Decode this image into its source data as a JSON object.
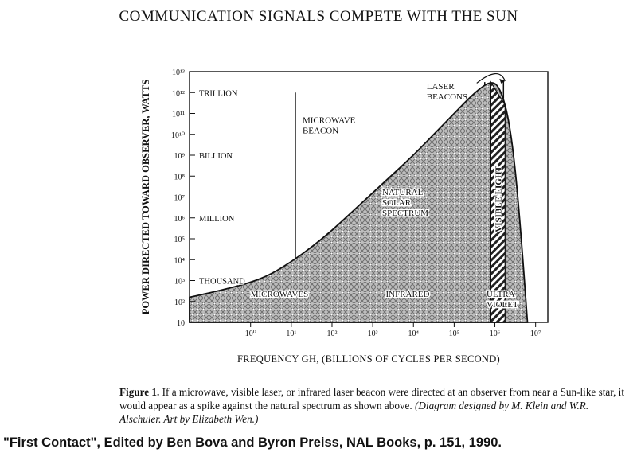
{
  "page": {
    "title": "COMMUNICATION SIGNALS COMPETE WITH THE SUN",
    "caption_label": "Figure 1.",
    "caption_text": " If a microwave, visible laser, or infrared laser beacon were directed at an observer from near a Sun-like star, it would appear as a spike against the natural spectrum as shown above. ",
    "caption_credit": "(Diagram designed by M. Klein and W.R. Alschuler. Art by Elizabeth Wen.)",
    "credit": "\"First Contact\", Edited by Ben Bova and Byron Preiss, NAL Books, p. 151, 1990."
  },
  "chart_data": {
    "type": "area",
    "title": "COMMUNICATION SIGNALS COMPETE WITH THE SUN",
    "xlabel": "FREQUENCY GH, (BILLIONS OF CYCLES PER SECOND)",
    "ylabel": "POWER DIRECTED TOWARD OBSERVER, WATTS",
    "x_scale": "log",
    "y_scale": "log",
    "xlim_exp": [
      -1.5,
      7.3
    ],
    "ylim_exp": [
      1,
      13
    ],
    "x_tick_exps": [
      0,
      1,
      2,
      3,
      4,
      5,
      6,
      7
    ],
    "x_tick_labels": [
      "10⁰",
      "10¹",
      "10²",
      "10³",
      "10⁴",
      "10⁵",
      "10⁶",
      "10⁷"
    ],
    "y_tick_exps": [
      13,
      12,
      11,
      10,
      9,
      8,
      7,
      6,
      5,
      4,
      3,
      2,
      1
    ],
    "y_tick_labels": [
      "10¹³",
      "10¹²",
      "10¹¹",
      "10¹⁰",
      "10⁹",
      "10⁸",
      "10⁷",
      "10⁶",
      "10⁵",
      "10⁴",
      "10³",
      "10²",
      "10"
    ],
    "y_word_labels": [
      {
        "exp": 12,
        "text": "TRILLION"
      },
      {
        "exp": 9,
        "text": "BILLION"
      },
      {
        "exp": 6,
        "text": "MILLION"
      },
      {
        "exp": 3,
        "text": "THOUSAND"
      }
    ],
    "series": [
      {
        "name": "NATURAL SOLAR SPECTRUM",
        "x_exp": [
          -1.5,
          -0.8,
          0,
          0.5,
          1.0,
          1.5,
          2.0,
          2.5,
          3.0,
          3.5,
          4.0,
          4.5,
          5.0,
          5.4,
          5.7,
          5.9,
          6.05,
          6.2,
          6.35,
          6.5,
          6.65,
          6.8
        ],
        "y_exp": [
          2.2,
          2.5,
          2.9,
          3.3,
          3.9,
          4.6,
          5.4,
          6.3,
          7.2,
          8.1,
          9.0,
          10.0,
          11.0,
          11.8,
          12.3,
          12.5,
          12.4,
          11.8,
          10.6,
          8.4,
          5.0,
          1.0
        ]
      }
    ],
    "beacons": [
      {
        "label_lines": [
          "MICROWAVE",
          "BEACON"
        ],
        "x_exp": 1.1,
        "y_exp": 12
      },
      {
        "label_lines": [
          "LASER",
          "BEACONS"
        ],
        "x_exp": 5.75,
        "y_exp": 12.5
      }
    ],
    "bands": [
      {
        "label": "VISIBLE LIGHT",
        "x_start_exp": 5.9,
        "x_end_exp": 6.25
      }
    ],
    "region_labels": [
      {
        "lines": [
          "MICROWAVES"
        ]
      },
      {
        "lines": [
          "INFRARED"
        ]
      },
      {
        "lines": [
          "ULTRA",
          "VIOLET"
        ]
      },
      {
        "lines": [
          "NATURAL",
          "SOLAR",
          "SPECTRUM"
        ]
      }
    ]
  }
}
